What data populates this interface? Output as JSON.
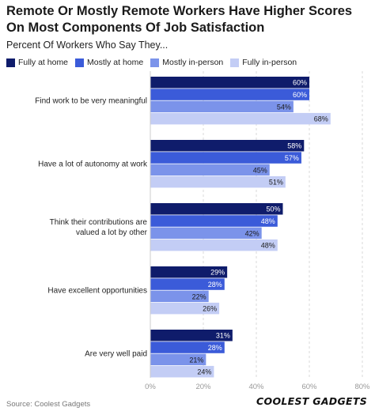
{
  "title": "Remote Or Mostly Remote Workers Have Higher Scores On Most Components Of Job Satisfaction",
  "subtitle": "Percent Of Workers Who Say They...",
  "source": "Source: Coolest Gadgets",
  "brand": "COOLEST GADGETS",
  "chart_data": {
    "type": "bar",
    "orientation": "horizontal",
    "categories": [
      "Find work to be very meaningful",
      "Have a lot of autonomy at work",
      "Think their contributions are valued a lot by other",
      "Have excellent opportunities",
      "Are very well paid"
    ],
    "series": [
      {
        "name": "Fully at home",
        "color": "#0f1c6b",
        "values": [
          60,
          58,
          50,
          29,
          31
        ],
        "labels": [
          "60%",
          "58%",
          "50%",
          "29%",
          "31%"
        ]
      },
      {
        "name": "Mostly at home",
        "color": "#3b5bd9",
        "values": [
          60,
          57,
          48,
          28,
          28
        ],
        "labels": [
          "60%",
          "57%",
          "48%",
          "28%",
          "28%"
        ]
      },
      {
        "name": "Mostly in-person",
        "color": "#7b93ea",
        "values": [
          54,
          45,
          42,
          22,
          21
        ],
        "labels": [
          "54%",
          "45%",
          "42%",
          "22%",
          "21%"
        ]
      },
      {
        "name": "Fully in-person",
        "color": "#c3cdf5",
        "values": [
          68,
          51,
          48,
          26,
          24
        ],
        "labels": [
          "68%",
          "51%",
          "48%",
          "26%",
          "24%"
        ]
      }
    ],
    "xlim": [
      0,
      80
    ],
    "xticks": [
      "0%",
      "20%",
      "40%",
      "60%",
      "80%"
    ],
    "grid": true,
    "legend": "top-left"
  }
}
